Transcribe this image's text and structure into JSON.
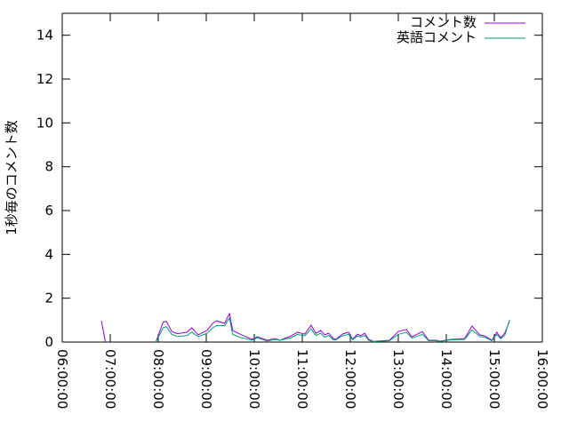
{
  "chart_data": {
    "type": "line",
    "title": "",
    "xlabel": "",
    "ylabel": "1秒毎のコメント数",
    "xlim": [
      "06:00:00",
      "16:00:00"
    ],
    "ylim": [
      0,
      15
    ],
    "xticks": [
      "06:00:00",
      "07:00:00",
      "08:00:00",
      "09:00:00",
      "10:00:00",
      "11:00:00",
      "12:00:00",
      "13:00:00",
      "14:00:00",
      "15:00:00",
      "16:00:00"
    ],
    "yticks": [
      "0",
      "2",
      "4",
      "6",
      "8",
      "10",
      "12",
      "14"
    ],
    "grid": false,
    "legend_position": "top-right",
    "series": [
      {
        "name": "コメント数",
        "color": "#9400d3",
        "segments": [
          [
            [
              "06:49",
              0.97
            ],
            [
              "06:54",
              0
            ]
          ],
          [
            [
              "07:57",
              0
            ],
            [
              "08:06",
              0.9
            ],
            [
              "08:10",
              0.95
            ],
            [
              "08:17",
              0.48
            ],
            [
              "08:24",
              0.38
            ],
            [
              "08:36",
              0.45
            ],
            [
              "08:42",
              0.65
            ],
            [
              "08:50",
              0.33
            ],
            [
              "09:01",
              0.53
            ],
            [
              "09:08",
              0.85
            ],
            [
              "09:13",
              0.97
            ],
            [
              "09:23",
              0.85
            ],
            [
              "09:29",
              1.3
            ],
            [
              "09:33",
              0.53
            ],
            [
              "09:42",
              0.36
            ],
            [
              "09:50",
              0.24
            ],
            [
              "09:57",
              0.12
            ],
            [
              "10:04",
              0.24
            ],
            [
              "10:16",
              0.08
            ],
            [
              "10:26",
              0.16
            ],
            [
              "10:32",
              0.08
            ],
            [
              "10:46",
              0.28
            ],
            [
              "10:54",
              0.45
            ],
            [
              "11:03",
              0.36
            ],
            [
              "11:11",
              0.77
            ],
            [
              "11:17",
              0.4
            ],
            [
              "11:23",
              0.53
            ],
            [
              "11:28",
              0.33
            ],
            [
              "11:33",
              0.4
            ],
            [
              "11:39",
              0.16
            ],
            [
              "11:42",
              0.12
            ],
            [
              "11:50",
              0.36
            ],
            [
              "11:58",
              0.45
            ],
            [
              "12:03",
              0.12
            ],
            [
              "12:09",
              0.36
            ],
            [
              "12:13",
              0.28
            ],
            [
              "12:18",
              0.4
            ],
            [
              "12:23",
              0.12
            ],
            [
              "12:29",
              0.03
            ],
            [
              "12:49",
              0.08
            ],
            [
              "13:00",
              0.48
            ],
            [
              "13:10",
              0.57
            ],
            [
              "13:17",
              0.24
            ],
            [
              "13:30",
              0.48
            ],
            [
              "13:38",
              0.08
            ],
            [
              "13:47",
              0.08
            ],
            [
              "13:52",
              0.04
            ],
            [
              "14:06",
              0.12
            ],
            [
              "14:23",
              0.16
            ],
            [
              "14:32",
              0.73
            ],
            [
              "14:42",
              0.33
            ],
            [
              "14:48",
              0.28
            ],
            [
              "14:57",
              0.08
            ],
            [
              "15:03",
              0.45
            ],
            [
              "15:08",
              0.2
            ],
            [
              "15:13",
              0.4
            ],
            [
              "15:19",
              0.95
            ]
          ]
        ]
      },
      {
        "name": "英語コメント",
        "color": "#009e73",
        "segments": [
          [
            [
              "07:57",
              0
            ],
            [
              "08:06",
              0.65
            ],
            [
              "08:10",
              0.7
            ],
            [
              "08:17",
              0.35
            ],
            [
              "08:24",
              0.25
            ],
            [
              "08:36",
              0.3
            ],
            [
              "08:42",
              0.45
            ],
            [
              "08:50",
              0.25
            ],
            [
              "09:01",
              0.4
            ],
            [
              "09:08",
              0.65
            ],
            [
              "09:13",
              0.75
            ],
            [
              "09:23",
              0.75
            ],
            [
              "09:29",
              1.1
            ],
            [
              "09:33",
              0.35
            ],
            [
              "09:42",
              0.22
            ],
            [
              "09:50",
              0.15
            ],
            [
              "09:57",
              0.08
            ],
            [
              "10:04",
              0.2
            ],
            [
              "10:16",
              0.05
            ],
            [
              "10:26",
              0.12
            ],
            [
              "10:32",
              0.08
            ],
            [
              "10:46",
              0.2
            ],
            [
              "10:54",
              0.35
            ],
            [
              "11:03",
              0.28
            ],
            [
              "11:11",
              0.6
            ],
            [
              "11:17",
              0.3
            ],
            [
              "11:23",
              0.4
            ],
            [
              "11:28",
              0.22
            ],
            [
              "11:33",
              0.3
            ],
            [
              "11:39",
              0.1
            ],
            [
              "11:42",
              0.1
            ],
            [
              "11:50",
              0.28
            ],
            [
              "11:58",
              0.35
            ],
            [
              "12:03",
              0.1
            ],
            [
              "12:09",
              0.28
            ],
            [
              "12:13",
              0.22
            ],
            [
              "12:18",
              0.3
            ],
            [
              "12:23",
              0.08
            ],
            [
              "12:29",
              0.02
            ],
            [
              "12:49",
              0.06
            ],
            [
              "13:00",
              0.35
            ],
            [
              "13:10",
              0.45
            ],
            [
              "13:17",
              0.18
            ],
            [
              "13:30",
              0.35
            ],
            [
              "13:38",
              0.06
            ],
            [
              "13:47",
              0.06
            ],
            [
              "13:52",
              0.03
            ],
            [
              "14:06",
              0.1
            ],
            [
              "14:23",
              0.12
            ],
            [
              "14:32",
              0.55
            ],
            [
              "14:42",
              0.25
            ],
            [
              "14:48",
              0.22
            ],
            [
              "14:57",
              0.06
            ],
            [
              "15:03",
              0.35
            ],
            [
              "15:08",
              0.15
            ],
            [
              "15:13",
              0.3
            ],
            [
              "15:19",
              1.0
            ]
          ]
        ]
      }
    ]
  }
}
